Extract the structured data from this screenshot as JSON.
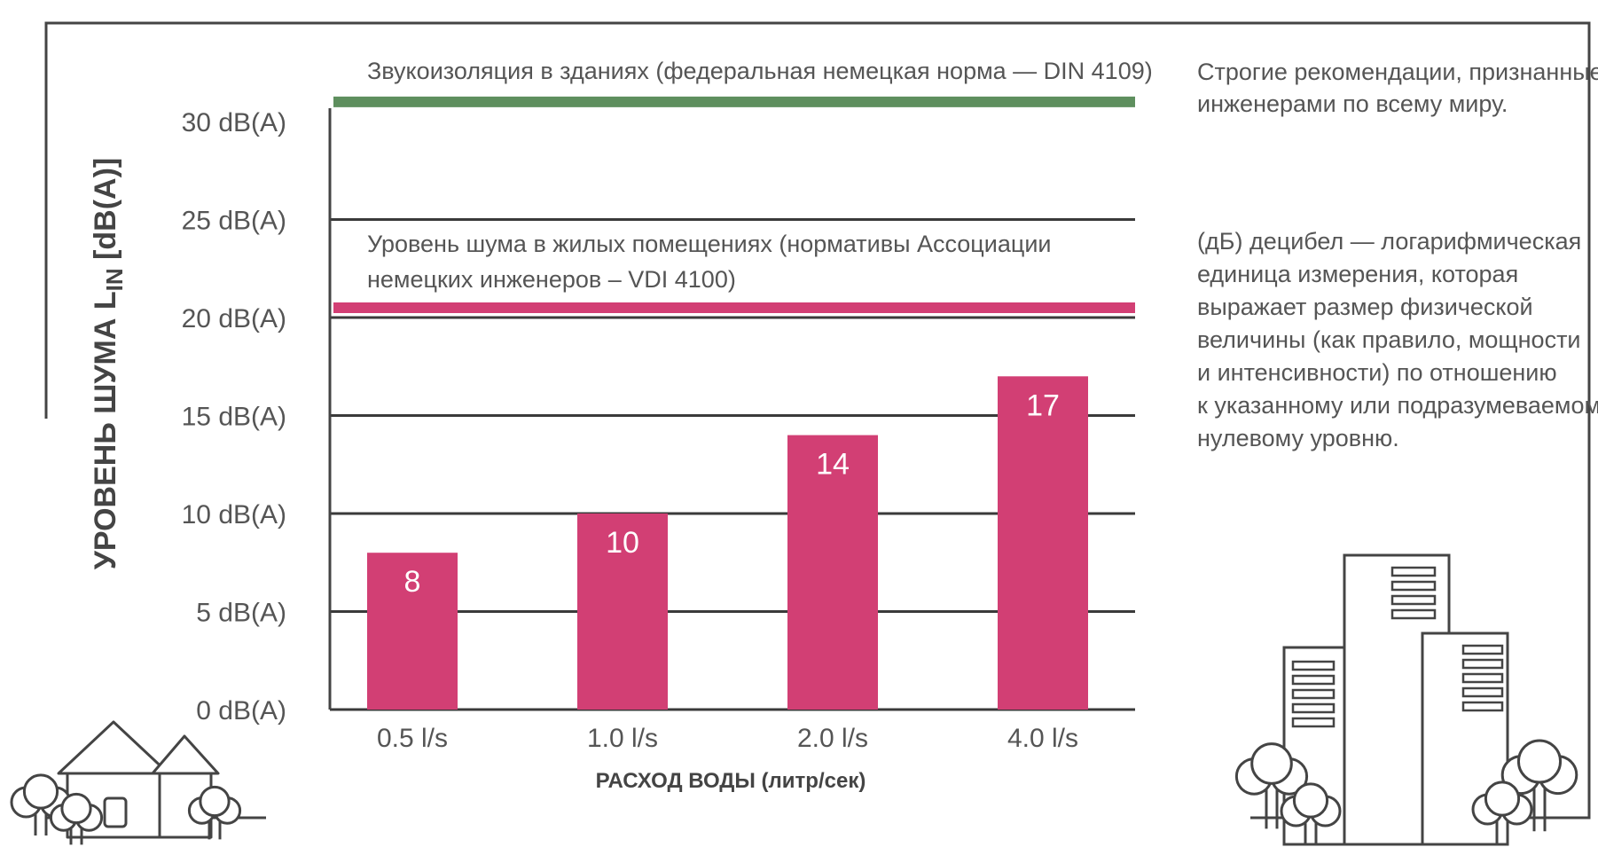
{
  "colors": {
    "frame": "#444444",
    "grid": "#3a3a3a",
    "bar": "#d23f74",
    "din_line": "#5e8f5e",
    "vdi_line": "#d23f74",
    "text": "#555555",
    "axis_title": "#444444",
    "bar_label": "#ffffff"
  },
  "notes": {
    "engineers": "Строгие рекомендации, признанные\nинженерами по всему миру.",
    "decibel": "(дБ) децибел — логарифмическая\nединица измерения, которая\nвыражает размер физической\nвеличины (как правило, мощности\nи интенсивности) по отношению\nк указанному или подразумеваемому\nнулевому уровню."
  },
  "chart_data": {
    "type": "bar",
    "categories": [
      "0.5 l/s",
      "1.0 l/s",
      "2.0 l/s",
      "4.0 l/s"
    ],
    "values": [
      8,
      10,
      14,
      17
    ],
    "data_labels": [
      "8",
      "10",
      "14",
      "17"
    ],
    "xlabel": "РАСХОД ВОДЫ (литр/сек)",
    "ylabel": "УРОВЕНЬ ШУМА L",
    "ylabel_subscript": "IN",
    "ylabel_suffix": " [dB(A)]",
    "ylim": [
      0,
      30
    ],
    "yticks": [
      0,
      5,
      10,
      15,
      20,
      25,
      30
    ],
    "ytick_labels": [
      "0 dB(A)",
      "5 dB(A)",
      "10 dB(A)",
      "15 dB(A)",
      "20 dB(A)",
      "25 dB(A)",
      "30 dB(A)"
    ],
    "grid": true,
    "reference_lines": [
      {
        "value": 31,
        "label": "Звукоизоляция в зданиях (федеральная немецкая норма — DIN 4109)",
        "color": "#5e8f5e"
      },
      {
        "value": 20.5,
        "label": "Уровень шума в жилых помещениях (нормативы Ассоциации\nнемецких инженеров – VDI 4100)",
        "color": "#d23f74"
      }
    ]
  },
  "icons": [
    "frame-house-icon",
    "office-buildings-icon",
    "tree-icon"
  ]
}
